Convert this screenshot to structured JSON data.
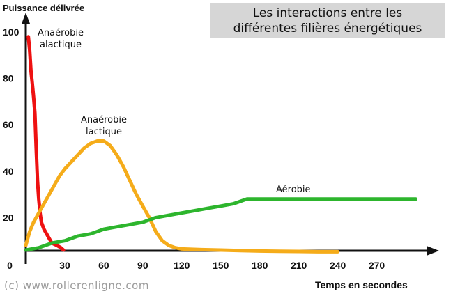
{
  "chart_data": {
    "type": "line",
    "title": "Les interactions entre les différentes filières énergétiques",
    "title_lines": [
      "Les interactions entre les",
      "différentes filières énergétiques"
    ],
    "ylabel": "Puissance délivrée",
    "xlabel": "Temps en secondes",
    "xlim": [
      0,
      300
    ],
    "ylim": [
      0,
      100
    ],
    "x_ticks": [
      0,
      30,
      60,
      90,
      120,
      150,
      180,
      210,
      240,
      270
    ],
    "y_ticks": [
      20,
      40,
      60,
      80,
      100
    ],
    "grid": false,
    "legend": "inline labels",
    "series": [
      {
        "name": "Anaérobie alactique",
        "label_lines": "Anaérobie\nalactique",
        "color": "#ee1111",
        "x": [
          2,
          3,
          4,
          5,
          6,
          7,
          8,
          9,
          10,
          11,
          12,
          14,
          17,
          20,
          24,
          27,
          29
        ],
        "y": [
          98,
          92,
          83,
          78,
          72,
          65,
          50,
          36,
          28,
          22,
          18,
          15,
          12,
          9,
          8,
          7,
          6
        ]
      },
      {
        "name": "Anaérobie lactique",
        "label_lines": "Anaérobie\nlactique",
        "color": "#f5ac1a",
        "x": [
          0,
          3,
          6,
          10,
          14,
          18,
          22,
          26,
          30,
          35,
          40,
          45,
          50,
          55,
          60,
          65,
          70,
          75,
          80,
          85,
          90,
          95,
          100,
          105,
          110,
          115,
          120,
          135,
          150,
          165,
          180,
          195,
          210,
          225,
          240
        ],
        "y": [
          8,
          14,
          18,
          22,
          26,
          30,
          34,
          38,
          41,
          44,
          47,
          50,
          52,
          53,
          53,
          51,
          47,
          42,
          36,
          30,
          25,
          20,
          14,
          10,
          8,
          7,
          6.5,
          6.2,
          6,
          5.8,
          5.6,
          5.5,
          5.4,
          5.3,
          5.3
        ]
      },
      {
        "name": "Aérobie",
        "label_lines": "Aérobie",
        "color": "#2db52d",
        "x": [
          0,
          10,
          20,
          30,
          40,
          50,
          60,
          70,
          80,
          90,
          100,
          110,
          120,
          130,
          140,
          150,
          160,
          165,
          170,
          180,
          195,
          210,
          225,
          240,
          255,
          270,
          285,
          300
        ],
        "y": [
          6,
          7,
          9,
          10,
          12,
          13,
          15,
          16,
          17,
          18,
          20,
          21,
          22,
          23,
          24,
          25,
          26,
          27,
          28,
          28,
          28,
          28,
          28,
          28,
          28,
          28,
          28,
          28
        ]
      }
    ]
  },
  "copyright": "(c) www.rollerenligne.com"
}
